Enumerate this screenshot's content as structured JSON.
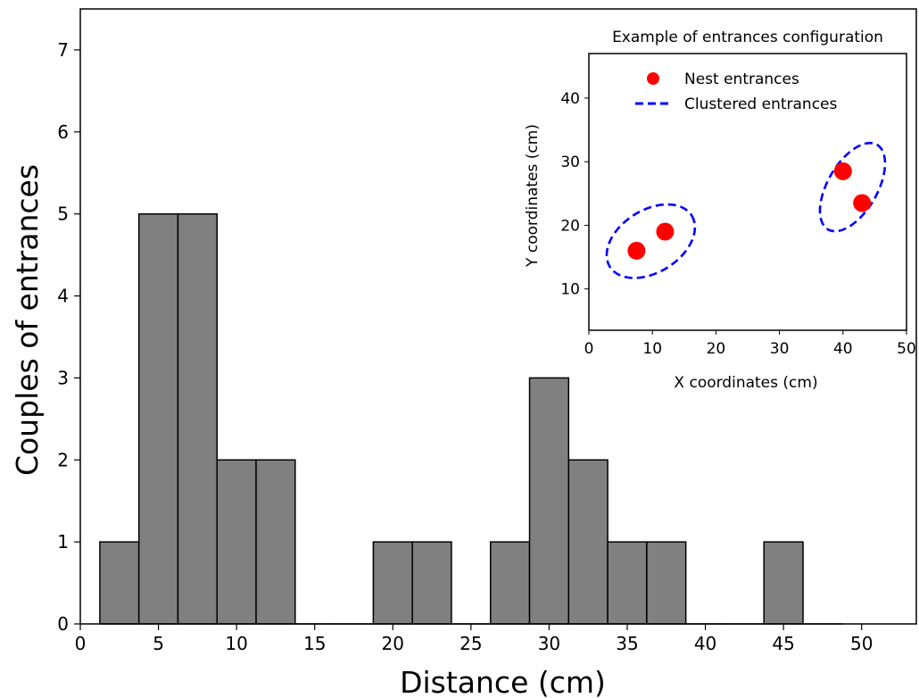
{
  "chart_data": [
    {
      "type": "bar",
      "title": "",
      "xlabel": "Distance (cm)",
      "ylabel": "Couples of entrances",
      "xlim": [
        0,
        53.5
      ],
      "ylim": [
        0,
        7.5
      ],
      "xticks": [
        "0",
        "5",
        "10",
        "15",
        "20",
        "25",
        "30",
        "35",
        "40",
        "45",
        "50"
      ],
      "yticks": [
        "0",
        "1",
        "2",
        "3",
        "4",
        "5",
        "6",
        "7"
      ],
      "bin_edges": [
        1.25,
        3.75,
        6.25,
        8.75,
        11.25,
        13.75,
        16.25,
        18.75,
        21.25,
        23.75,
        26.25,
        28.75,
        31.25,
        33.75,
        36.25,
        38.75,
        41.25,
        43.75,
        46.25,
        48.75
      ],
      "values": [
        1,
        5,
        5,
        2,
        2,
        0,
        0,
        1,
        1,
        0,
        1,
        3,
        2,
        1,
        1,
        0,
        0,
        1,
        0
      ],
      "bar_color": "#808080",
      "edge_color": "#000000",
      "grid": false
    },
    {
      "type": "scatter",
      "title": "Example of entrances configuration",
      "xlabel": "X coordinates (cm)",
      "ylabel": "Y coordinates (cm)",
      "xlim": [
        0,
        50
      ],
      "ylim": [
        3.5,
        47
      ],
      "xticks": [
        "0",
        "10",
        "20",
        "30",
        "40",
        "50"
      ],
      "yticks": [
        "10",
        "20",
        "30",
        "40"
      ],
      "legend_position": "top",
      "series": [
        {
          "name": "Nest entrances",
          "color": "#ff0000",
          "points": [
            {
              "x": 7.5,
              "y": 16.0
            },
            {
              "x": 12.0,
              "y": 19.0
            },
            {
              "x": 40.0,
              "y": 28.5
            },
            {
              "x": 43.0,
              "y": 23.5
            }
          ]
        },
        {
          "name": "Clustered entrances",
          "color": "#0000ff",
          "style": "dashed",
          "ellipses": [
            {
              "cx": 9.75,
              "cy": 17.5,
              "rx": 7.6,
              "ry": 4.9,
              "angle_deg": -32
            },
            {
              "cx": 41.5,
              "cy": 26.0,
              "rx": 7.7,
              "ry": 3.9,
              "angle_deg": -60
            }
          ]
        }
      ],
      "grid": false
    }
  ]
}
